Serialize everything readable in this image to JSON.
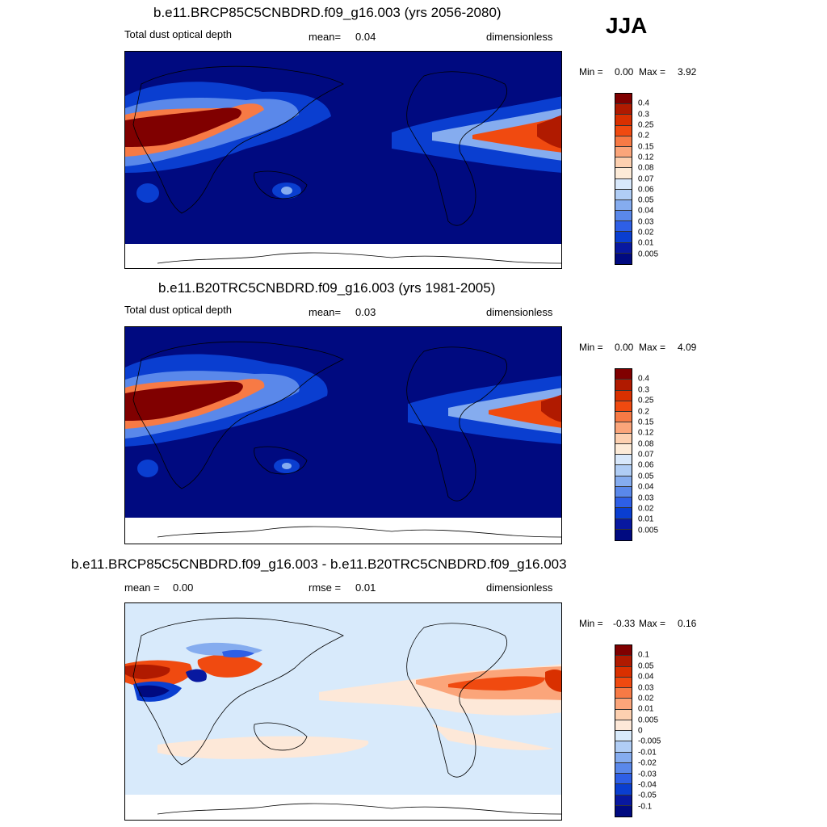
{
  "season": "JJA",
  "panels": [
    {
      "title": "b.e11.BRCP85C5CNBDRD.f09_g16.003 (yrs 2056-2080)",
      "left_label": "Total dust optical depth",
      "center_label": "mean=",
      "center_value": "0.04",
      "right_label": "dimensionless",
      "min_label": "Min =",
      "min_value": "0.00",
      "max_label": "Max =",
      "max_value": "3.92",
      "colorbar_labels": [
        "0.4",
        "0.3",
        "0.25",
        "0.2",
        "0.15",
        "0.12",
        "0.08",
        "0.07",
        "0.06",
        "0.05",
        "0.04",
        "0.03",
        "0.02",
        "0.01",
        "0.005"
      ]
    },
    {
      "title": "b.e11.B20TRC5CNBDRD.f09_g16.003 (yrs 1981-2005)",
      "left_label": "Total dust optical depth",
      "center_label": "mean=",
      "center_value": "0.03",
      "right_label": "dimensionless",
      "min_label": "Min =",
      "min_value": "0.00",
      "max_label": "Max =",
      "max_value": "4.09",
      "colorbar_labels": [
        "0.4",
        "0.3",
        "0.25",
        "0.2",
        "0.15",
        "0.12",
        "0.08",
        "0.07",
        "0.06",
        "0.05",
        "0.04",
        "0.03",
        "0.02",
        "0.01",
        "0.005"
      ]
    },
    {
      "title": "b.e11.BRCP85C5CNBDRD.f09_g16.003 - b.e11.B20TRC5CNBDRD.f09_g16.003",
      "left_label": "mean =",
      "left_value": "0.00",
      "center_label": "rmse =",
      "center_value": "0.01",
      "right_label": "dimensionless",
      "min_label": "Min =",
      "min_value": "-0.33",
      "max_label": "Max =",
      "max_value": "0.16",
      "colorbar_labels": [
        "0.1",
        "0.05",
        "0.04",
        "0.03",
        "0.02",
        "0.01",
        "0.005",
        "0",
        "-0.005",
        "-0.01",
        "-0.02",
        "-0.03",
        "-0.04",
        "-0.05",
        "-0.1"
      ]
    }
  ],
  "colors": {
    "abs_scale": [
      "#800000",
      "#b01a00",
      "#d93000",
      "#f04a10",
      "#f77a45",
      "#fba57a",
      "#fdd0b0",
      "#fdebd8",
      "#d8e8fb",
      "#b0cdf5",
      "#85acef",
      "#5a88ea",
      "#2e5fe6",
      "#0a3ed0",
      "#0818a0",
      "#000a80"
    ],
    "diff_scale": [
      "#800000",
      "#b01a00",
      "#d93000",
      "#f04a10",
      "#f77a45",
      "#fba57a",
      "#fdd0b0",
      "#fde8d8",
      "#d8eafb",
      "#b0cdf5",
      "#85acef",
      "#5a88ea",
      "#2e5fe6",
      "#0a3ed0",
      "#0818a0",
      "#000a80"
    ]
  }
}
